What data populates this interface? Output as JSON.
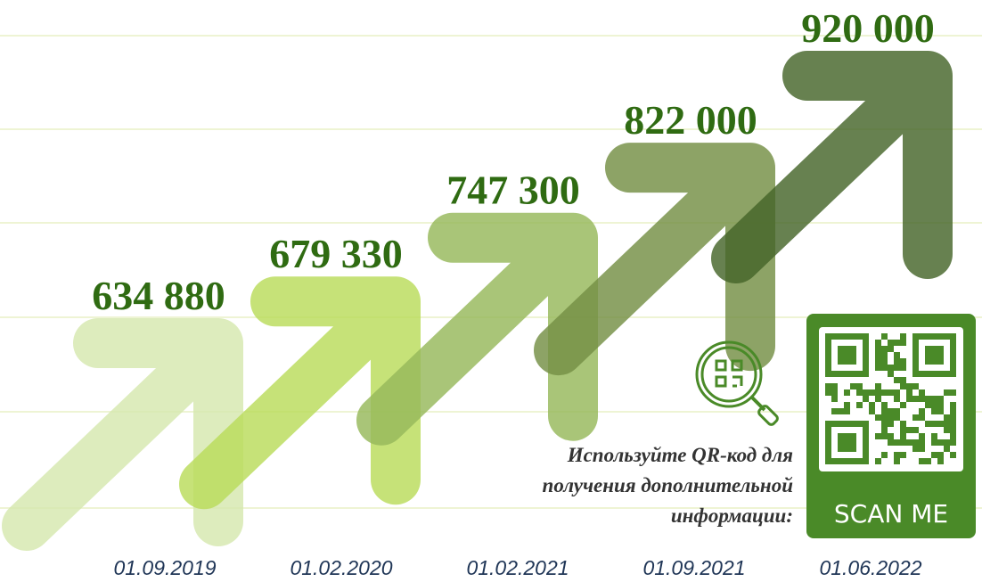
{
  "chart_data": {
    "type": "arrow",
    "categories": [
      "01.09.2019",
      "01.02.2020",
      "01.02.2021",
      "01.09.2021",
      "01.06.2022"
    ],
    "values": [
      634880,
      679330,
      747300,
      822000,
      920000
    ],
    "value_labels": [
      "634 880",
      "679 330",
      "747 300",
      "822 000",
      "920 000"
    ],
    "colors": [
      "#d6e8ae",
      "#b9dc5a",
      "#96b85a",
      "#748f44",
      "#45652a"
    ]
  },
  "qr": {
    "caption": [
      "Используйте QR-код для",
      "получения дополнительной",
      "информации:"
    ],
    "button": "SCAN ME"
  }
}
